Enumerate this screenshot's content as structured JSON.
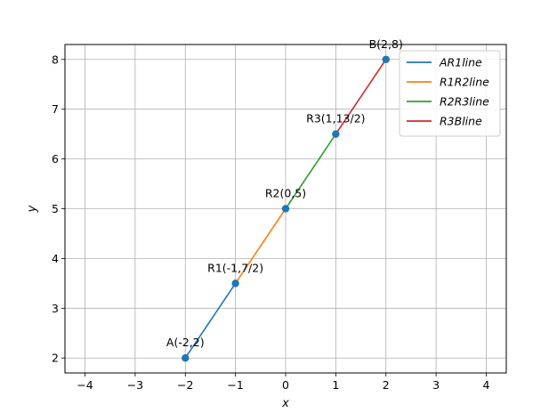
{
  "chart_data": {
    "type": "line",
    "xlabel": "x",
    "ylabel": "y",
    "xlim": [
      -4.4,
      4.4
    ],
    "ylim": [
      1.7,
      8.3
    ],
    "xticks": [
      -4,
      -3,
      -2,
      -1,
      0,
      1,
      2,
      3,
      4
    ],
    "yticks": [
      2,
      3,
      4,
      5,
      6,
      7,
      8
    ],
    "grid": true,
    "legend_position": "top-right",
    "series": [
      {
        "name": "AR1line",
        "color": "#1f77b4",
        "x": [
          -2,
          -1
        ],
        "y": [
          2,
          3.5
        ]
      },
      {
        "name": "R1R2line",
        "color": "#ff7f0e",
        "x": [
          -1,
          0
        ],
        "y": [
          3.5,
          5
        ]
      },
      {
        "name": "R2R3line",
        "color": "#2ca02c",
        "x": [
          0,
          1
        ],
        "y": [
          5,
          6.5
        ]
      },
      {
        "name": "R3Bline",
        "color": "#d62728",
        "x": [
          1,
          2
        ],
        "y": [
          6.5,
          8
        ]
      }
    ],
    "points": [
      {
        "label": "A(-2,2)",
        "x": -2,
        "y": 2
      },
      {
        "label": "R1(-1,7/2)",
        "x": -1,
        "y": 3.5
      },
      {
        "label": "R2(0,5)",
        "x": 0,
        "y": 5
      },
      {
        "label": "R3(1,13/2)",
        "x": 1,
        "y": 6.5
      },
      {
        "label": "B(2,8)",
        "x": 2,
        "y": 8
      }
    ],
    "point_color": "#1f77b4"
  }
}
